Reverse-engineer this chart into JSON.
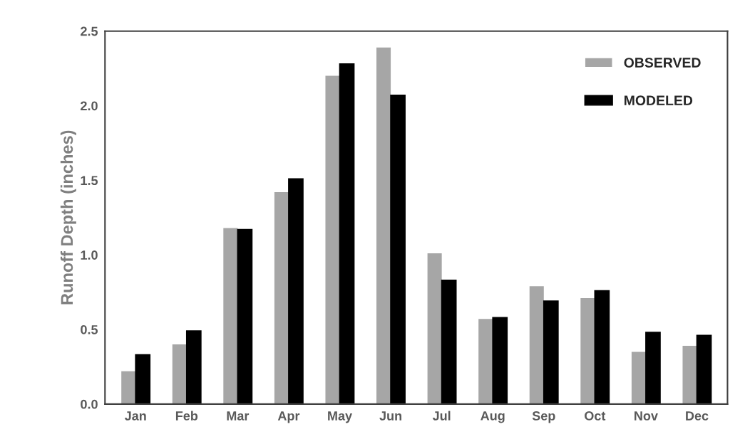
{
  "chart_data": {
    "type": "bar",
    "ylabel": "Runoff Depth (inches)",
    "categories": [
      "Jan",
      "Feb",
      "Mar",
      "Apr",
      "May",
      "Jun",
      "Jul",
      "Aug",
      "Sep",
      "Oct",
      "Nov",
      "Dec"
    ],
    "series": [
      {
        "name": "OBSERVED",
        "color": "#a6a6a6",
        "values": [
          0.22,
          0.4,
          1.18,
          1.42,
          2.2,
          2.39,
          1.01,
          0.57,
          0.79,
          0.71,
          0.35,
          0.39
        ]
      },
      {
        "name": "MODELED",
        "color": "#000000",
        "values": [
          0.33,
          0.49,
          1.17,
          1.51,
          2.28,
          2.07,
          0.83,
          0.58,
          0.69,
          0.76,
          0.48,
          0.46
        ]
      }
    ],
    "ylim": [
      0,
      2.5
    ],
    "yticks": [
      {
        "value": 0,
        "label": "0.0"
      },
      0.5,
      {
        "value": 1,
        "label": "1.0"
      },
      1.5,
      {
        "value": 2,
        "label": "2.0"
      },
      2.5
    ],
    "grid": false,
    "legend": "top right"
  }
}
